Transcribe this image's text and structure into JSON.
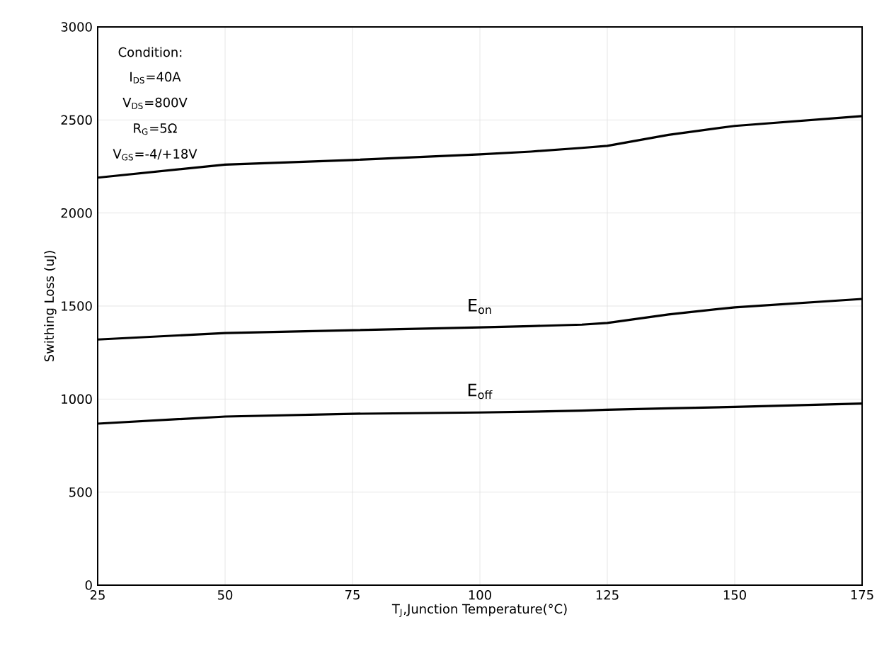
{
  "chart_data": {
    "type": "line",
    "xlabel": "T$_{J}$,Junction Temperature(°C)",
    "ylabel": "Swithing Loss (uJ)",
    "x": [
      25,
      50,
      75,
      100,
      110,
      120,
      125,
      137,
      150,
      175
    ],
    "series": [
      {
        "color": "#000000",
        "values": [
          2190,
          2260,
          2285,
          2315,
          2330,
          2350,
          2361,
          2420,
          2468,
          2521
        ]
      },
      {
        "name": "E$_{on}$",
        "color": "#000000",
        "values": [
          1320,
          1355,
          1370,
          1385,
          1392,
          1400,
          1409,
          1455,
          1493,
          1538
        ]
      },
      {
        "name": "E$_{off}$",
        "color": "#000000",
        "values": [
          868,
          906,
          921,
          928,
          932,
          938,
          943,
          950,
          958,
          976
        ]
      }
    ],
    "xlim": [
      25,
      175
    ],
    "ylim": [
      0,
      3000
    ],
    "xticks": [
      25,
      50,
      75,
      100,
      125,
      150,
      175
    ],
    "yticks": [
      0,
      500,
      1000,
      1500,
      2000,
      2500,
      3000
    ],
    "grid": true,
    "line_style": "solid",
    "marker": "none",
    "annotations": [
      "Condition:",
      "I$_{DS}$=40A",
      "V$_{DS}$=800V",
      "R$_{G}$=5Ω",
      "V$_{GS}$=-4/+18V"
    ]
  }
}
